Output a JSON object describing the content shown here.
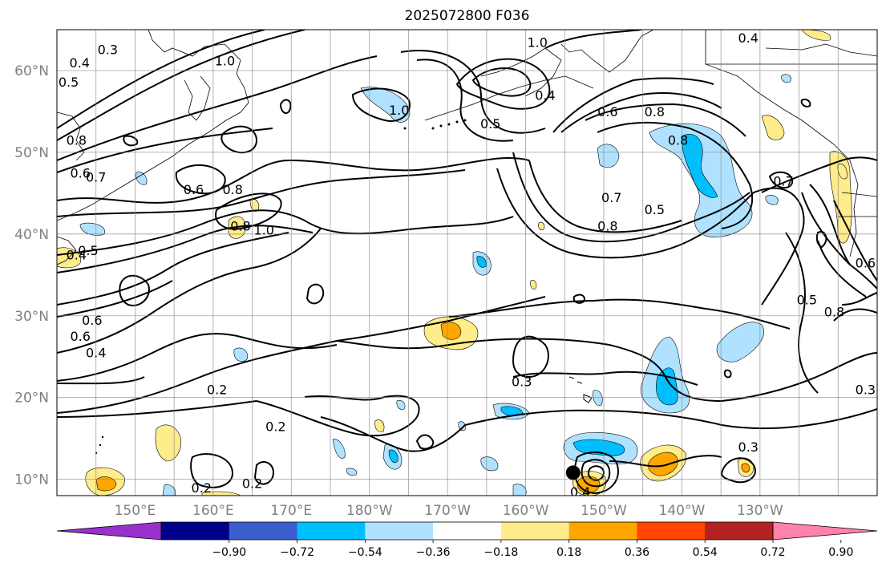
{
  "title": "2025072800 F036",
  "map": {
    "projection": "PlateCarree",
    "lon_range": [
      140,
      -115
    ],
    "lat_range": [
      8,
      65
    ],
    "lat_ticks": [
      "10°N",
      "20°N",
      "30°N",
      "40°N",
      "50°N",
      "60°N"
    ],
    "lon_ticks": [
      "150°E",
      "160°E",
      "170°E",
      "180°W",
      "170°W",
      "160°W",
      "150°W",
      "140°W",
      "130°W"
    ],
    "grid": true,
    "storm_marker": {
      "lon": -153,
      "lat": 11
    }
  },
  "contour_labels": [
    {
      "text": "0.4",
      "lon": 142.9,
      "lat": 61.0
    },
    {
      "text": "0.3",
      "lon": 146.5,
      "lat": 62.6
    },
    {
      "text": "0.5",
      "lon": 141.5,
      "lat": 58.6
    },
    {
      "text": "1.0",
      "lon": 161.5,
      "lat": 61.2
    },
    {
      "text": "0.8",
      "lon": 162.5,
      "lat": 45.5
    },
    {
      "text": "0.8",
      "lon": 142.5,
      "lat": 51.5
    },
    {
      "text": "0.6",
      "lon": 143.0,
      "lat": 47.5
    },
    {
      "text": "0.7",
      "lon": 145.0,
      "lat": 47.0
    },
    {
      "text": "0.6",
      "lon": 157.5,
      "lat": 45.5
    },
    {
      "text": "0.8",
      "lon": 163.5,
      "lat": 41.0
    },
    {
      "text": "1.0",
      "lon": 166.5,
      "lat": 40.5
    },
    {
      "text": "0.4",
      "lon": 142.5,
      "lat": 37.5
    },
    {
      "text": "0.5",
      "lon": 144.0,
      "lat": 38.0
    },
    {
      "text": "0.6",
      "lon": 144.5,
      "lat": 29.5
    },
    {
      "text": "0.4",
      "lon": 145.0,
      "lat": 25.5
    },
    {
      "text": "0.6",
      "lon": 143.0,
      "lat": 27.5
    },
    {
      "text": "0.2",
      "lon": 160.5,
      "lat": 21.0
    },
    {
      "text": "0.2",
      "lon": 168.0,
      "lat": 16.5
    },
    {
      "text": "0.2",
      "lon": 158.5,
      "lat": 9.0
    },
    {
      "text": "0.2",
      "lon": 165.0,
      "lat": 9.5
    },
    {
      "text": "1.0",
      "lon": 183.8,
      "lat": 55.2
    },
    {
      "text": "0.5",
      "lon": 195.5,
      "lat": 53.5
    },
    {
      "text": "0.4",
      "lon": 202.5,
      "lat": 57.0
    },
    {
      "text": "1.0",
      "lon": 201.5,
      "lat": 63.5
    },
    {
      "text": "0.6",
      "lon": 210.5,
      "lat": 55.0
    },
    {
      "text": "0.8",
      "lon": 216.5,
      "lat": 55.0
    },
    {
      "text": "0.8",
      "lon": 219.5,
      "lat": 51.5
    },
    {
      "text": "0.7",
      "lon": 211.0,
      "lat": 44.5
    },
    {
      "text": "0.8",
      "lon": 210.5,
      "lat": 41.0
    },
    {
      "text": "0.5",
      "lon": 216.5,
      "lat": 43.0
    },
    {
      "text": "0.3",
      "lon": 199.5,
      "lat": 22.0
    },
    {
      "text": "0.4",
      "lon": 207.0,
      "lat": 8.5
    },
    {
      "text": "0.3",
      "lon": 228.5,
      "lat": 14.0
    },
    {
      "text": "0.5",
      "lon": 236.0,
      "lat": 32.0
    },
    {
      "text": "0.8",
      "lon": 239.5,
      "lat": 30.5
    },
    {
      "text": "0.7",
      "lon": 233.0,
      "lat": 46.5
    },
    {
      "text": "0.6",
      "lon": 243.5,
      "lat": 36.5
    },
    {
      "text": "0.4",
      "lon": 228.5,
      "lat": 64.0
    },
    {
      "text": "0.3",
      "lon": 243.5,
      "lat": 21.0
    }
  ],
  "colorbar": {
    "colors": [
      "#9932cc",
      "#00008b",
      "#3a5fcd",
      "#00bfff",
      "#b0e2ff",
      "#ffffff",
      "#ffec8b",
      "#ffa500",
      "#ff4500",
      "#b22222",
      "#ff82ab"
    ],
    "tick_labels": [
      "-0.90",
      "-0.72",
      "-0.54",
      "-0.36",
      "-0.18",
      "0.18",
      "0.36",
      "0.54",
      "0.72",
      "0.90"
    ]
  }
}
